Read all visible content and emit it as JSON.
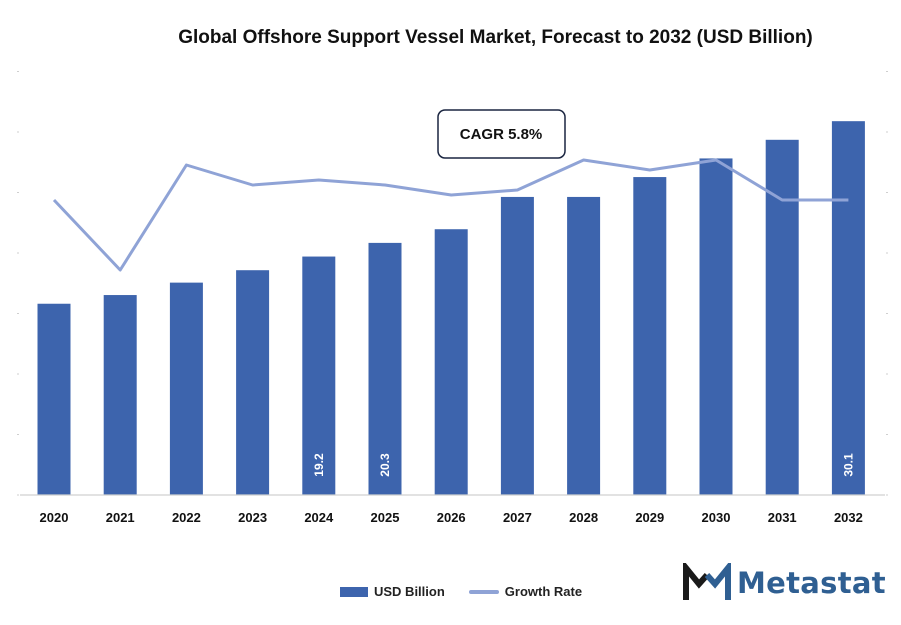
{
  "title": "Global Offshore Support Vessel Market, Forecast to 2032 (USD Billion)",
  "colors": {
    "bar": "#3d64ad",
    "line": "#8fa3d6",
    "axis": "#d0d0d0"
  },
  "annotation": {
    "text": "CAGR 5.8%"
  },
  "legend": {
    "bar_label": "USD Billion",
    "line_label": "Growth Rate"
  },
  "logo": {
    "text": "Metastat",
    "icon": "metastat-m-logo-icon"
  },
  "chart_data": {
    "type": "bar",
    "title": "Global Offshore Support Vessel Market, Forecast to 2032 (USD Billion)",
    "categories": [
      "2020",
      "2021",
      "2022",
      "2023",
      "2024",
      "2025",
      "2026",
      "2027",
      "2028",
      "2029",
      "2030",
      "2031",
      "2032"
    ],
    "series": [
      {
        "name": "USD Billion",
        "type": "bar",
        "values": [
          15.4,
          16.1,
          17.1,
          18.1,
          19.2,
          20.3,
          21.4,
          24.0,
          24.0,
          25.6,
          27.1,
          28.6,
          30.1
        ]
      },
      {
        "name": "Growth Rate",
        "type": "line",
        "values": [
          5.9,
          4.5,
          6.6,
          6.2,
          6.3,
          6.2,
          6.0,
          6.1,
          6.7,
          6.5,
          6.7,
          5.9,
          5.9
        ]
      }
    ],
    "data_labels": [
      {
        "category": "2024",
        "text": "19.2"
      },
      {
        "category": "2025",
        "text": "20.3"
      },
      {
        "category": "2032",
        "text": "30.1"
      }
    ],
    "ylim_bar": [
      0,
      31
    ],
    "ylim_line": [
      0,
      7.7
    ],
    "legend_position": "bottom",
    "grid": false
  }
}
